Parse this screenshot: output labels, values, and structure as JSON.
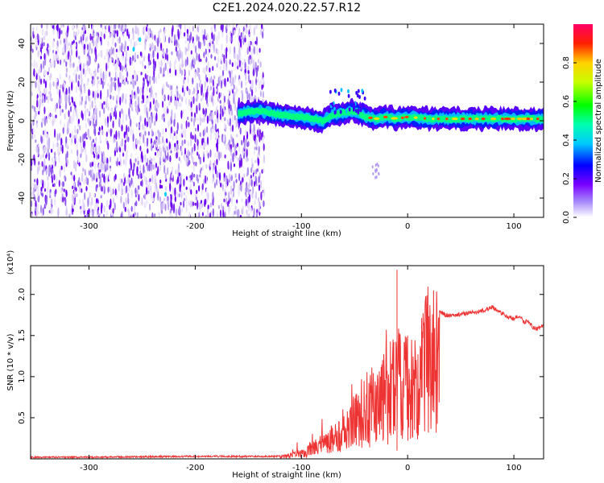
{
  "title": "C2E1.2024.020.22.57.R12",
  "chart_data": [
    {
      "type": "heatmap",
      "title": "C2E1.2024.020.22.57.R12",
      "xlabel": "Height of straight line (km)",
      "ylabel": "Frequency (Hz)",
      "xlim": [
        -355,
        128
      ],
      "ylim": [
        -50,
        50
      ],
      "xticks": [
        -300,
        -200,
        -100,
        0,
        100
      ],
      "xtick_labels": [
        "-300",
        "-200",
        "-100",
        "0",
        "100"
      ],
      "yticks": [
        -40,
        -20,
        0,
        20,
        40
      ],
      "ytick_labels": [
        "-40",
        "-20",
        "0",
        "20",
        "40"
      ],
      "colorbar": {
        "label": "Normalized spectral amplitude",
        "range": [
          0,
          1
        ],
        "ticks": [
          0.0,
          0.2,
          0.4,
          0.6,
          0.8
        ],
        "tick_labels": [
          "0.0",
          "0.2",
          "0.4",
          "0.6",
          "0.8"
        ],
        "colormap": [
          "#ffffff",
          "#8a2be2",
          "#0000ff",
          "#00ffff",
          "#00ff00",
          "#ffff00",
          "#ff0000",
          "#ff0066"
        ]
      },
      "noise_region_x": [
        -355,
        -135
      ],
      "signal_ridge": {
        "x": [
          -160,
          -140,
          -120,
          -100,
          -90,
          -80,
          -70,
          -60,
          -50,
          -40,
          -30,
          -20,
          -10,
          0,
          20,
          40,
          60,
          80,
          100,
          120,
          128
        ],
        "y": [
          4,
          5,
          3,
          2,
          1,
          0,
          3,
          4,
          5,
          2,
          1,
          2,
          1,
          2,
          1,
          1,
          1,
          1,
          1,
          1,
          1
        ]
      }
    },
    {
      "type": "line",
      "xlabel": "Height of straight line (km)",
      "ylabel": "SNR (10 * v/v)",
      "y_multiplier": "(x10⁴)",
      "xlim": [
        -355,
        128
      ],
      "ylim": [
        0,
        2.35
      ],
      "xticks": [
        -300,
        -200,
        -100,
        0,
        100
      ],
      "xtick_labels": [
        "-300",
        "-200",
        "-100",
        "0",
        "100"
      ],
      "yticks": [
        0.5,
        1.0,
        1.5,
        2.0
      ],
      "ytick_labels": [
        "0.5",
        "1.0",
        "1.5",
        "2.0"
      ],
      "series": [
        {
          "name": "SNR",
          "color": "#ee3333",
          "x": [
            -355,
            -300,
            -200,
            -120,
            -110,
            -100,
            -90,
            -80,
            -70,
            -60,
            -50,
            -45,
            -40,
            -35,
            -30,
            -25,
            -20,
            -15,
            -12,
            -10,
            -8,
            -5,
            0,
            5,
            10,
            12,
            15,
            20,
            25,
            30,
            35,
            40,
            50,
            60,
            70,
            80,
            85,
            90,
            95,
            100,
            105,
            110,
            113,
            118,
            122,
            128
          ],
          "y": [
            0.02,
            0.02,
            0.03,
            0.03,
            0.06,
            0.1,
            0.18,
            0.28,
            0.38,
            0.5,
            0.62,
            0.75,
            0.85,
            0.95,
            0.9,
            1.0,
            1.1,
            1.25,
            1.35,
            1.4,
            1.55,
            1.45,
            1.3,
            1.25,
            1.15,
            1.45,
            1.6,
            1.72,
            1.78,
            1.8,
            1.75,
            1.74,
            1.76,
            1.78,
            1.8,
            1.85,
            1.8,
            1.76,
            1.72,
            1.7,
            1.74,
            1.66,
            1.68,
            1.6,
            1.58,
            1.62
          ]
        }
      ]
    }
  ]
}
